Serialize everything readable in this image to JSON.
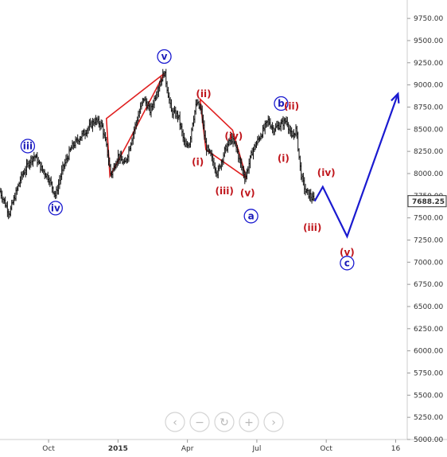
{
  "chart_data": {
    "type": "ohlc",
    "title": "",
    "xlabel": "",
    "ylabel": "",
    "x_tick_labels": [
      "Oct",
      "2015",
      "Apr",
      "Jul",
      "Oct",
      "16"
    ],
    "x_tick_months": [
      0,
      3,
      6,
      9,
      12,
      15
    ],
    "x_range_months": [
      -2.1,
      15.5
    ],
    "y_ticks": [
      5000,
      5250,
      5500,
      5750,
      6000,
      6250,
      6500,
      6750,
      7000,
      7250,
      7500,
      7750,
      8000,
      8250,
      8500,
      8750,
      9000,
      9250,
      9500,
      9750
    ],
    "y_tick_labels": [
      "5000.00",
      "5250.00",
      "5500.00",
      "5750.00",
      "6000.00",
      "6250.00",
      "6500.00",
      "6750.00",
      "7000.00",
      "7250.00",
      "7500.00",
      "7750.00",
      "8000.00",
      "8250.00",
      "8500.00",
      "8750.00",
      "9000.00",
      "9250.00",
      "9500.00",
      "9750.00"
    ],
    "ylim": [
      5000,
      9850
    ],
    "current_price": 7688.25,
    "current_price_label": "7688.25",
    "price_path": [
      [
        -2.1,
        7800
      ],
      [
        -1.7,
        7550
      ],
      [
        -1.2,
        7950
      ],
      [
        -0.8,
        8150
      ],
      [
        -0.6,
        8200
      ],
      [
        -0.3,
        8050
      ],
      [
        0.0,
        7950
      ],
      [
        0.3,
        7750
      ],
      [
        0.6,
        8050
      ],
      [
        1.0,
        8300
      ],
      [
        1.5,
        8450
      ],
      [
        2.0,
        8600
      ],
      [
        2.3,
        8550
      ],
      [
        2.5,
        8300
      ],
      [
        2.7,
        7980
      ],
      [
        3.0,
        8200
      ],
      [
        3.3,
        8100
      ],
      [
        3.7,
        8500
      ],
      [
        4.1,
        8850
      ],
      [
        4.4,
        8700
      ],
      [
        4.7,
        8950
      ],
      [
        5.0,
        9150
      ],
      [
        5.3,
        8700
      ],
      [
        5.6,
        8650
      ],
      [
        5.9,
        8300
      ],
      [
        6.1,
        8350
      ],
      [
        6.2,
        8550
      ],
      [
        6.4,
        8800
      ],
      [
        6.6,
        8700
      ],
      [
        6.8,
        8300
      ],
      [
        7.0,
        8200
      ],
      [
        7.3,
        8000
      ],
      [
        7.6,
        8250
      ],
      [
        7.9,
        8400
      ],
      [
        8.1,
        8300
      ],
      [
        8.3,
        8100
      ],
      [
        8.5,
        7950
      ],
      [
        8.8,
        8250
      ],
      [
        9.2,
        8450
      ],
      [
        9.5,
        8600
      ],
      [
        9.7,
        8500
      ],
      [
        10.0,
        8550
      ],
      [
        10.3,
        8600
      ],
      [
        10.5,
        8400
      ],
      [
        10.7,
        8500
      ],
      [
        10.9,
        8000
      ],
      [
        11.1,
        7800
      ],
      [
        11.3,
        7750
      ],
      [
        11.5,
        7688
      ]
    ],
    "projection_path": [
      [
        11.5,
        7688
      ],
      [
        11.85,
        7850
      ],
      [
        12.9,
        7290
      ],
      [
        15.1,
        8900
      ]
    ],
    "channels": [
      {
        "name": "triangle-1",
        "points": [
          [
            2.5,
            8620
          ],
          [
            5.0,
            9130
          ],
          [
            3.7,
            8480
          ],
          [
            2.65,
            7970
          ]
        ]
      },
      {
        "name": "triangle-2",
        "points": [
          [
            6.55,
            8840
          ],
          [
            7.95,
            8490
          ],
          [
            8.55,
            7950
          ],
          [
            6.8,
            8270
          ]
        ]
      }
    ],
    "annotations": [
      {
        "label": "iii",
        "month": -0.9,
        "price": 8310,
        "color": "blue",
        "circled": true
      },
      {
        "label": "iv",
        "month": 0.3,
        "price": 7610,
        "color": "blue",
        "circled": true
      },
      {
        "label": "v",
        "month": 5.0,
        "price": 9320,
        "color": "blue",
        "circled": true
      },
      {
        "label": "(ii)",
        "month": 6.7,
        "price": 8900,
        "color": "red",
        "circled": false
      },
      {
        "label": "(i)",
        "month": 6.45,
        "price": 8130,
        "color": "red",
        "circled": false
      },
      {
        "label": "(iii)",
        "month": 7.6,
        "price": 7800,
        "color": "red",
        "circled": false
      },
      {
        "label": "(iv)",
        "month": 8.0,
        "price": 8420,
        "color": "red",
        "circled": false
      },
      {
        "label": "(v)",
        "month": 8.6,
        "price": 7780,
        "color": "red",
        "circled": false
      },
      {
        "label": "a",
        "month": 8.75,
        "price": 7520,
        "color": "blue",
        "circled": true
      },
      {
        "label": "b",
        "month": 10.05,
        "price": 8790,
        "color": "blue",
        "circled": true
      },
      {
        "label": "(ii)",
        "month": 10.5,
        "price": 8760,
        "color": "red",
        "circled": false
      },
      {
        "label": "(i)",
        "month": 10.15,
        "price": 8170,
        "color": "red",
        "circled": false
      },
      {
        "label": "(iv)",
        "month": 12.0,
        "price": 8010,
        "color": "red",
        "circled": false
      },
      {
        "label": "(iii)",
        "month": 11.4,
        "price": 7390,
        "color": "red",
        "circled": false
      },
      {
        "label": "(v)",
        "month": 12.9,
        "price": 7110,
        "color": "red",
        "circled": false
      },
      {
        "label": "c",
        "month": 12.9,
        "price": 6990,
        "color": "blue",
        "circled": true
      }
    ],
    "grid": false,
    "colors": {
      "red": "#e02020",
      "blue": "#1a1ad0",
      "price": "#111111",
      "axis": "#cccccc"
    }
  },
  "navigator": {
    "buttons": [
      {
        "name": "prev-button",
        "glyph": "‹"
      },
      {
        "name": "zoom-out-button",
        "glyph": "−"
      },
      {
        "name": "reset-button",
        "glyph": "↻"
      },
      {
        "name": "zoom-in-button",
        "glyph": "+"
      },
      {
        "name": "next-button",
        "glyph": "›"
      }
    ]
  }
}
